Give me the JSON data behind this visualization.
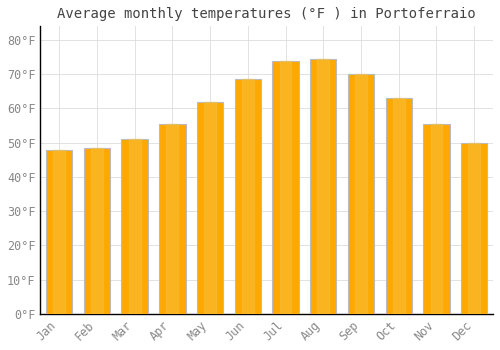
{
  "title": "Average monthly temperatures (°F ) in Portoferraio",
  "months": [
    "Jan",
    "Feb",
    "Mar",
    "Apr",
    "May",
    "Jun",
    "Jul",
    "Aug",
    "Sep",
    "Oct",
    "Nov",
    "Dec"
  ],
  "values": [
    48,
    48.5,
    51,
    55.5,
    62,
    68.5,
    74,
    74.5,
    70,
    63,
    55.5,
    50
  ],
  "bar_color_center": "#FFA800",
  "bar_color_edge": "#F5C040",
  "bar_outline_color": "#BBBBBB",
  "background_color": "#FFFFFF",
  "grid_color": "#DDDDDD",
  "ylim": [
    0,
    84
  ],
  "yticks": [
    0,
    10,
    20,
    30,
    40,
    50,
    60,
    70,
    80
  ],
  "title_fontsize": 10,
  "tick_fontsize": 8.5,
  "tick_font_color": "#888888",
  "title_color": "#444444"
}
